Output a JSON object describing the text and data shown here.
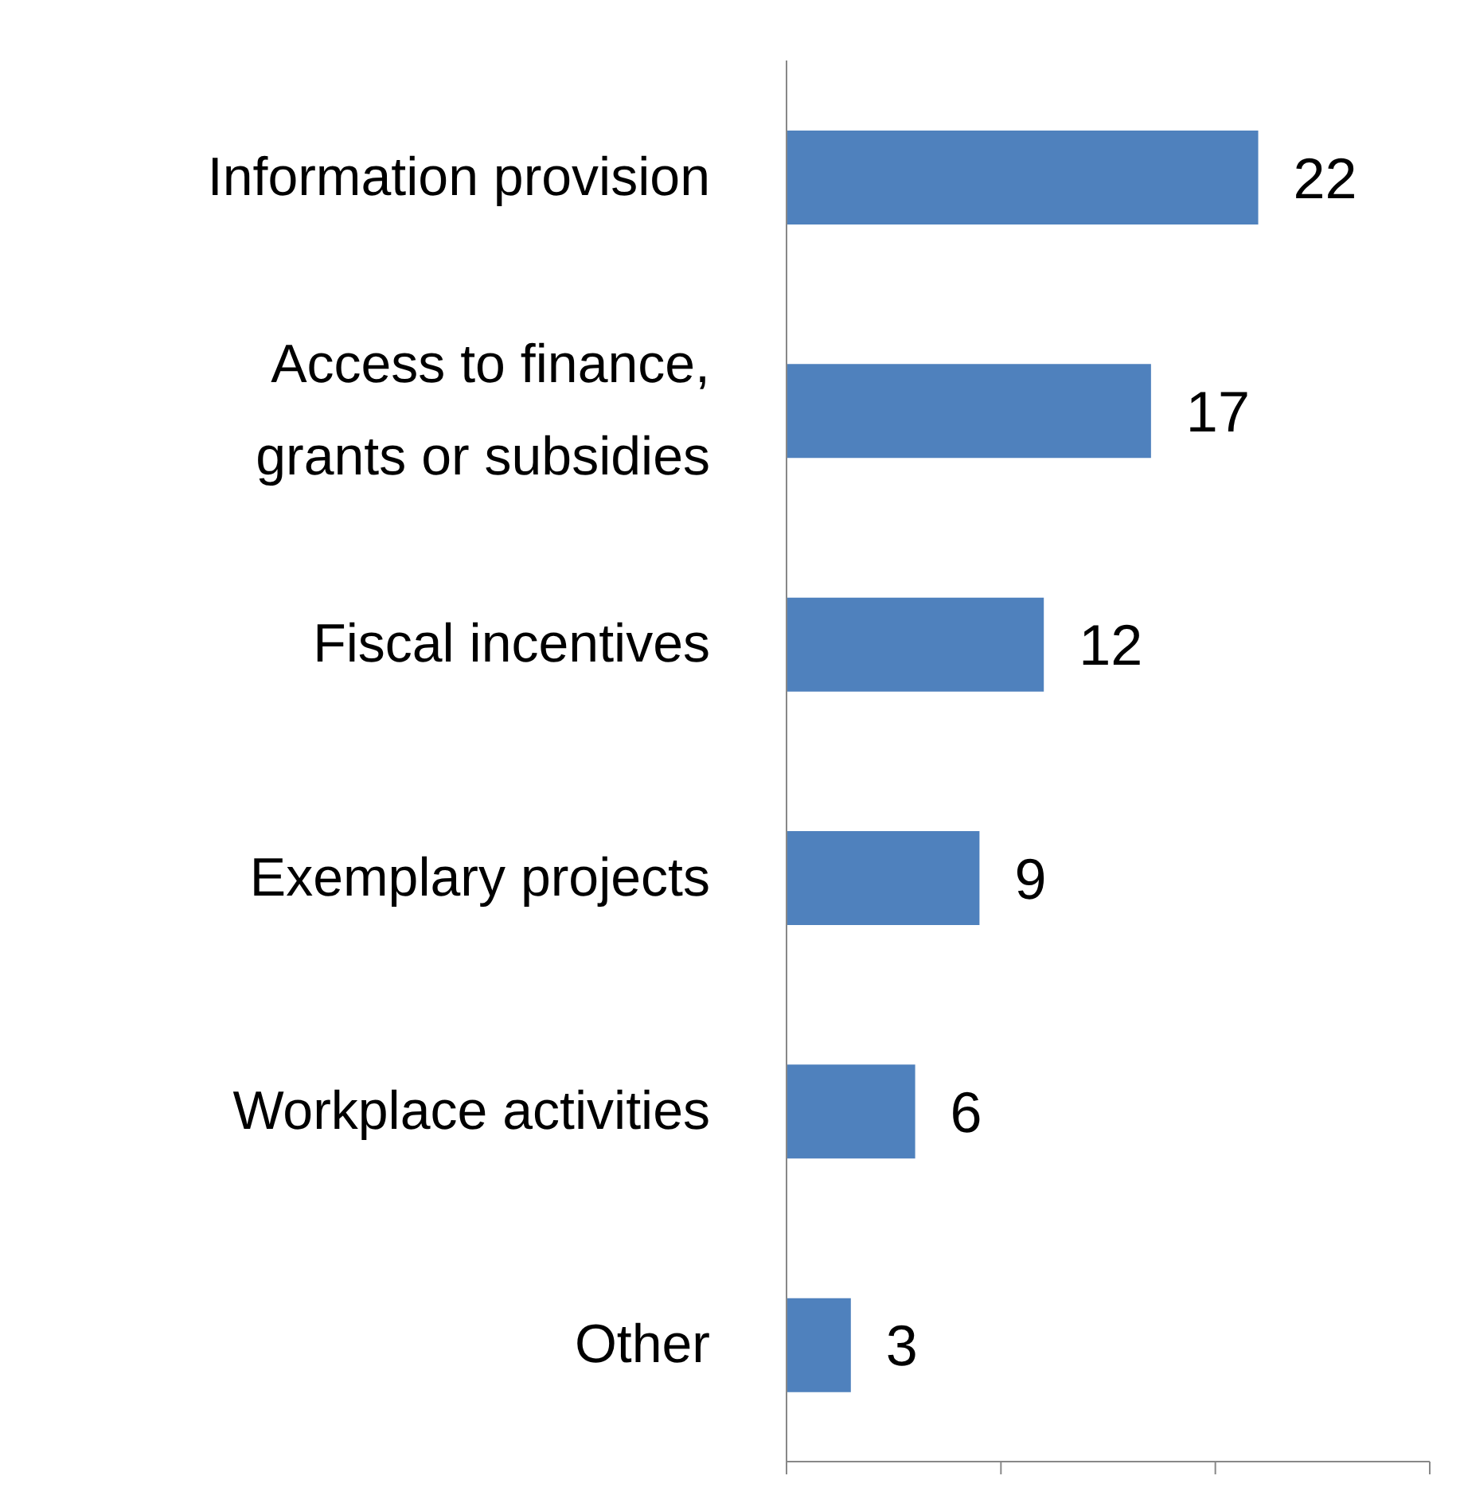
{
  "chart_data": {
    "type": "bar",
    "orientation": "horizontal",
    "categories": [
      "Information provision",
      "Access to finance, grants or subsidies",
      "Fiscal incentives",
      "Exemplary projects",
      "Workplace activities",
      "Other"
    ],
    "values": [
      22,
      17,
      12,
      9,
      6,
      3
    ],
    "color": "#4f81bd",
    "data_labels": true,
    "xlim": [
      0,
      30
    ],
    "xticks": [
      {
        "value": 0,
        "label": null
      },
      {
        "value": 10,
        "label": null
      },
      {
        "value": 20,
        "label": null
      },
      {
        "value": 30,
        "label": null
      }
    ],
    "tick_labels": "y",
    "grid": false
  }
}
